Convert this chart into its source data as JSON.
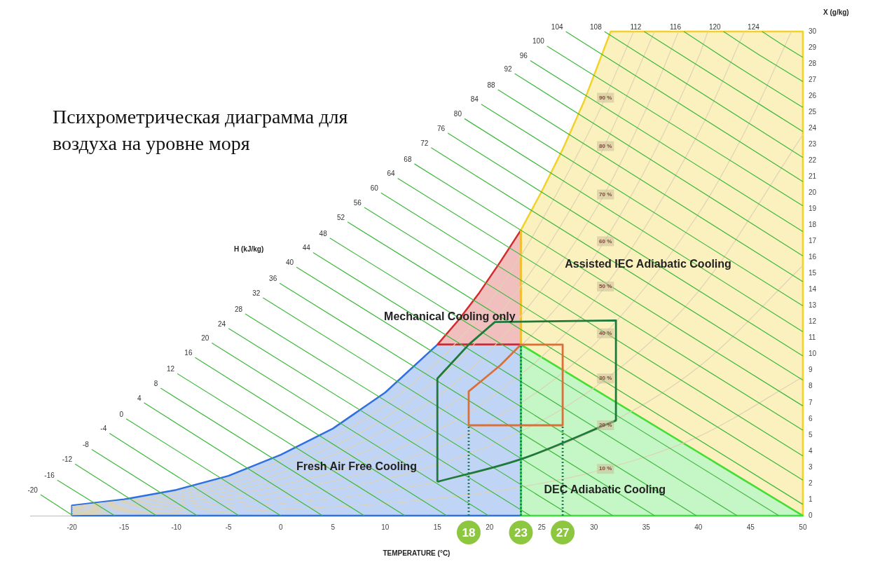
{
  "chart_data": {
    "type": "line",
    "title": "Психрометрическая диаграмма для воздуха на уровне моря",
    "xlabel": "TEMPERATURE (°C)",
    "ylabel": "X (g/kg)",
    "xlim": [
      -24,
      50
    ],
    "xticks": [
      -20,
      -15,
      -10,
      -5,
      0,
      5,
      10,
      15,
      20,
      25,
      30,
      35,
      40,
      45,
      50
    ],
    "ylim": [
      0,
      30
    ],
    "yticks": [
      0,
      1,
      2,
      3,
      4,
      5,
      6,
      7,
      8,
      9,
      10,
      11,
      12,
      13,
      14,
      15,
      16,
      17,
      18,
      19,
      20,
      21,
      22,
      23,
      24,
      25,
      26,
      27,
      28,
      29,
      30
    ],
    "legend": false,
    "marker": "none",
    "series": [
      {
        "type": "area",
        "color": "#2f6fe0",
        "x": [
          -20,
          -20,
          -15,
          -10,
          -5,
          0,
          5,
          10,
          15,
          23,
          23,
          -20
        ],
        "values": [
          0,
          0.63,
          1.01,
          1.6,
          2.47,
          3.77,
          5.4,
          7.63,
          10.6,
          10.6,
          0,
          0
        ]
      },
      {
        "type": "area",
        "color": "#d42a2a",
        "x": [
          15,
          17,
          19,
          21,
          23,
          23,
          15
        ],
        "values": [
          10.6,
          12.1,
          13.8,
          15.7,
          17.7,
          10.6,
          10.6
        ]
      },
      {
        "type": "area",
        "color": "#f2d22a",
        "x": [
          23,
          25,
          27,
          29,
          31.6,
          50,
          50,
          23,
          23
        ],
        "values": [
          17.7,
          20.1,
          22.7,
          25.6,
          30,
          30,
          0,
          10.6,
          17.7
        ]
      },
      {
        "type": "area",
        "color": "#3ee03e",
        "x": [
          23,
          50,
          23,
          23
        ],
        "values": [
          10.6,
          0,
          0,
          10.6
        ]
      },
      {
        "color": "#ddd3b5",
        "x": [
          -20,
          -10,
          0,
          10,
          20,
          30,
          40,
          50
        ],
        "values": [
          0.06,
          0.16,
          0.38,
          0.76,
          1.47,
          2.72,
          4.9,
          8.6
        ]
      },
      {
        "color": "#ddd3b5",
        "x": [
          -20,
          -10,
          0,
          10,
          20,
          30,
          40,
          50
        ],
        "values": [
          0.13,
          0.32,
          0.75,
          1.51,
          2.88,
          5.26,
          9.2,
          15.5
        ]
      },
      {
        "color": "#ddd3b5",
        "x": [
          -20,
          -10,
          0,
          10,
          20,
          30,
          40,
          50
        ],
        "values": [
          0.19,
          0.48,
          1.13,
          2.27,
          4.34,
          7.92,
          13.9,
          23.6
        ]
      },
      {
        "color": "#ddd3b5",
        "x": [
          -20,
          -10,
          0,
          10,
          20,
          30,
          40,
          45,
          48.9
        ],
        "values": [
          0.25,
          0.64,
          1.5,
          3.03,
          5.8,
          10.6,
          18.7,
          24.5,
          30
        ]
      },
      {
        "color": "#ddd3b5",
        "x": [
          -20,
          -10,
          0,
          10,
          20,
          30,
          40,
          44.4
        ],
        "values": [
          0.31,
          0.8,
          1.88,
          3.79,
          7.27,
          13.3,
          23.7,
          30
        ]
      },
      {
        "color": "#ddd3b5",
        "x": [
          -20,
          -10,
          0,
          10,
          20,
          30,
          40,
          40.9
        ],
        "values": [
          0.38,
          0.96,
          2.26,
          4.55,
          8.73,
          16.0,
          28.4,
          30
        ]
      },
      {
        "color": "#ddd3b5",
        "x": [
          -20,
          -10,
          0,
          10,
          20,
          30,
          35,
          38.1
        ],
        "values": [
          0.45,
          1.12,
          2.64,
          5.32,
          10.2,
          18.8,
          25.2,
          30
        ]
      },
      {
        "color": "#ddd3b5",
        "x": [
          -20,
          -10,
          0,
          10,
          20,
          30,
          35.8
        ],
        "values": [
          0.51,
          1.28,
          3.02,
          6.08,
          11.7,
          21.6,
          30
        ]
      },
      {
        "color": "#ddd3b5",
        "x": [
          -20,
          -10,
          0,
          10,
          20,
          30,
          33.8
        ],
        "values": [
          0.57,
          1.44,
          3.39,
          6.85,
          13.2,
          24.4,
          30
        ]
      },
      {
        "name": "-20",
        "color": "#3cb83c",
        "x": [
          -23.0,
          -19.9
        ],
        "values": [
          1.3,
          0
        ]
      },
      {
        "name": "-16",
        "color": "#3cb83c",
        "x": [
          -21.4,
          -15.9
        ],
        "values": [
          2.2,
          0
        ]
      },
      {
        "name": "-12",
        "color": "#3cb83c",
        "x": [
          -19.7,
          -11.9
        ],
        "values": [
          3.2,
          0
        ]
      },
      {
        "name": "-8",
        "color": "#3cb83c",
        "x": [
          -18.1,
          -8.0
        ],
        "values": [
          4.1,
          0
        ]
      },
      {
        "name": "-4",
        "color": "#3cb83c",
        "x": [
          -16.4,
          -4.0
        ],
        "values": [
          5.1,
          0
        ]
      },
      {
        "name": "0",
        "color": "#3cb83c",
        "x": [
          -14.8,
          0
        ],
        "values": [
          6.0,
          0
        ]
      },
      {
        "name": "4",
        "color": "#3cb83c",
        "x": [
          -13.1,
          4.0
        ],
        "values": [
          7.0,
          0
        ]
      },
      {
        "name": "8",
        "color": "#3cb83c",
        "x": [
          -11.5,
          8.0
        ],
        "values": [
          7.9,
          0
        ]
      },
      {
        "name": "12",
        "color": "#3cb83c",
        "x": [
          -9.9,
          11.9
        ],
        "values": [
          8.8,
          0
        ]
      },
      {
        "name": "16",
        "color": "#3cb83c",
        "x": [
          -8.2,
          15.9
        ],
        "values": [
          9.8,
          0
        ]
      },
      {
        "name": "20",
        "color": "#3cb83c",
        "x": [
          -6.6,
          19.9
        ],
        "values": [
          10.7,
          0
        ]
      },
      {
        "name": "24",
        "color": "#3cb83c",
        "x": [
          -5.0,
          23.9
        ],
        "values": [
          11.6,
          0
        ]
      },
      {
        "name": "28",
        "color": "#3cb83c",
        "x": [
          -3.4,
          27.8
        ],
        "values": [
          12.5,
          0
        ]
      },
      {
        "name": "32",
        "color": "#3cb83c",
        "x": [
          -1.7,
          31.8
        ],
        "values": [
          13.5,
          0
        ]
      },
      {
        "name": "36",
        "color": "#3cb83c",
        "x": [
          -0.1,
          35.8
        ],
        "values": [
          14.4,
          0
        ]
      },
      {
        "name": "40",
        "color": "#3cb83c",
        "x": [
          1.5,
          39.8
        ],
        "values": [
          15.4,
          0
        ]
      },
      {
        "name": "44",
        "color": "#3cb83c",
        "x": [
          3.1,
          43.7
        ],
        "values": [
          16.3,
          0
        ]
      },
      {
        "name": "48",
        "color": "#3cb83c",
        "x": [
          4.7,
          47.7
        ],
        "values": [
          17.2,
          0
        ]
      },
      {
        "name": "52",
        "color": "#3cb83c",
        "x": [
          6.4,
          50
        ],
        "values": [
          18.2,
          0.7
        ]
      },
      {
        "name": "56",
        "color": "#3cb83c",
        "x": [
          8.0,
          50
        ],
        "values": [
          19.1,
          2.2
        ]
      },
      {
        "name": "60",
        "color": "#3cb83c",
        "x": [
          9.6,
          50
        ],
        "values": [
          20.0,
          3.7
        ]
      },
      {
        "name": "64",
        "color": "#3cb83c",
        "x": [
          11.2,
          50
        ],
        "values": [
          20.9,
          5.3
        ]
      },
      {
        "name": "68",
        "color": "#3cb83c",
        "x": [
          12.8,
          50
        ],
        "values": [
          21.8,
          6.8
        ]
      },
      {
        "name": "72",
        "color": "#3cb83c",
        "x": [
          14.4,
          50
        ],
        "values": [
          22.8,
          8.4
        ]
      },
      {
        "name": "76",
        "color": "#3cb83c",
        "x": [
          16.0,
          50
        ],
        "values": [
          23.7,
          9.9
        ]
      },
      {
        "name": "80",
        "color": "#3cb83c",
        "x": [
          17.6,
          50
        ],
        "values": [
          24.6,
          11.4
        ]
      },
      {
        "name": "84",
        "color": "#3cb83c",
        "x": [
          19.2,
          50
        ],
        "values": [
          25.5,
          13.0
        ]
      },
      {
        "name": "88",
        "color": "#3cb83c",
        "x": [
          20.8,
          50
        ],
        "values": [
          26.4,
          14.5
        ]
      },
      {
        "name": "92",
        "color": "#3cb83c",
        "x": [
          22.4,
          50
        ],
        "values": [
          27.4,
          16.1
        ]
      },
      {
        "name": "96",
        "color": "#3cb83c",
        "x": [
          23.9,
          50
        ],
        "values": [
          28.2,
          17.6
        ]
      },
      {
        "name": "100",
        "color": "#3cb83c",
        "x": [
          25.5,
          50
        ],
        "values": [
          29.1,
          19.2
        ]
      },
      {
        "name": "104",
        "color": "#3cb83c",
        "x": [
          27.3,
          50
        ],
        "values": [
          30,
          20.7
        ]
      },
      {
        "name": "108",
        "color": "#3cb83c",
        "x": [
          31.0,
          50
        ],
        "values": [
          30,
          22.2
        ]
      },
      {
        "name": "112",
        "color": "#3cb83c",
        "x": [
          34.8,
          42.4,
          50
        ],
        "values": [
          30,
          26.9,
          23.8
        ]
      },
      {
        "name": "116",
        "color": "#3cb83c",
        "x": [
          38.6,
          44.3,
          50
        ],
        "values": [
          30,
          27.6,
          25.3
        ]
      },
      {
        "name": "120",
        "color": "#3cb83c",
        "x": [
          42.4,
          46.2,
          50
        ],
        "values": [
          30,
          28.4,
          26.9
        ]
      },
      {
        "name": "124",
        "color": "#3cb83c",
        "x": [
          46.1,
          48.0,
          50
        ],
        "values": [
          30,
          29.2,
          28.4
        ]
      },
      {
        "color": "#1e7a3a",
        "x": [
          15,
          15,
          18,
          20.5,
          32.1,
          32.1
        ],
        "values": [
          2.1,
          8.5,
          10.6,
          12,
          12.1,
          5.9
        ]
      },
      {
        "color": "#1e7a3a",
        "x": [
          15,
          23,
          32.1
        ],
        "values": [
          2.1,
          3.5,
          5.9
        ]
      },
      {
        "color": "#d9703a",
        "x": [
          18,
          18,
          19.5,
          21,
          23,
          27,
          27
        ],
        "values": [
          5.6,
          7.7,
          8.5,
          9.3,
          10.6,
          10.6,
          5.6
        ]
      },
      {
        "color": "#d9703a",
        "x": [
          18,
          27
        ],
        "values": [
          5.6,
          5.6
        ]
      },
      {
        "color": "#1e7a5a",
        "line_style": "dotted",
        "x": [
          18,
          18
        ],
        "values": [
          0,
          5.6
        ]
      },
      {
        "color": "#1e7a5a",
        "line_style": "dotted",
        "x": [
          23,
          23
        ],
        "values": [
          0,
          10.6
        ]
      },
      {
        "color": "#1e7a5a",
        "line_style": "dotted",
        "x": [
          27,
          27
        ],
        "values": [
          0,
          5.6
        ]
      }
    ],
    "annotations": [
      "H (kJ/kg)",
      "Mechanical Cooling only",
      "Assisted IEC Adiabatic Cooling",
      "DEC Adiabatic Cooling",
      {
        "text": "Fresh Air Free Cooling",
        "x": 1.5,
        "y": 3.0
      },
      {
        "text": "10 %",
        "x": 31.1,
        "y": 2.9
      },
      {
        "text": "20 %",
        "x": 31.1,
        "y": 5.6
      },
      {
        "text": "30 %",
        "x": 31.1,
        "y": 8.5
      },
      {
        "text": "40 %",
        "x": 31.1,
        "y": 11.3
      },
      {
        "text": "50 %",
        "x": 31.1,
        "y": 14.2
      },
      {
        "text": "60 %",
        "x": 31.1,
        "y": 17.0
      },
      {
        "text": "70 %",
        "x": 31.1,
        "y": 19.9
      },
      {
        "text": "80 %",
        "x": 31.1,
        "y": 22.9
      },
      {
        "text": "90 %",
        "x": 31.1,
        "y": 25.9
      },
      {
        "text": "18",
        "x": 18,
        "y": 0
      },
      {
        "text": "23",
        "x": 23,
        "y": 0
      },
      {
        "text": "27",
        "x": 27,
        "y": 0
      }
    ]
  }
}
